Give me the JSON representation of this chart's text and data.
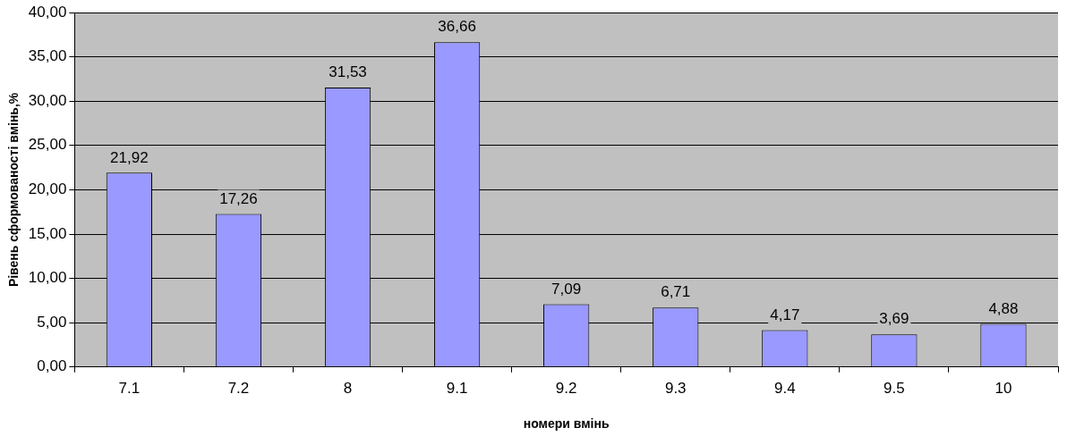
{
  "chart_data": {
    "type": "bar",
    "xlabel": "номери вмінь",
    "ylabel": "Рівень сформованості вмінь,%",
    "categories": [
      "7.1",
      "7.2",
      "8",
      "9.1",
      "9.2",
      "9.3",
      "9.4",
      "9.5",
      "10"
    ],
    "values": [
      21.92,
      17.26,
      31.53,
      36.66,
      7.09,
      6.71,
      4.17,
      3.69,
      4.88
    ],
    "value_labels": [
      "21,92",
      "17,26",
      "31,53",
      "36,66",
      "7,09",
      "6,71",
      "4,17",
      "3,69",
      "4,88"
    ],
    "color": "#9999ff",
    "ylim": [
      0,
      40
    ],
    "yticks": [
      {
        "value": 0,
        "label": "0,00"
      },
      {
        "value": 5,
        "label": "5,00"
      },
      {
        "value": 10,
        "label": "10,00"
      },
      {
        "value": 15,
        "label": "15,00"
      },
      {
        "value": 20,
        "label": "20,00"
      },
      {
        "value": 25,
        "label": "25,00"
      },
      {
        "value": 30,
        "label": "30,00"
      },
      {
        "value": 35,
        "label": "35,00"
      },
      {
        "value": 40,
        "label": "40,00"
      }
    ],
    "grid": "y",
    "legend": false
  }
}
